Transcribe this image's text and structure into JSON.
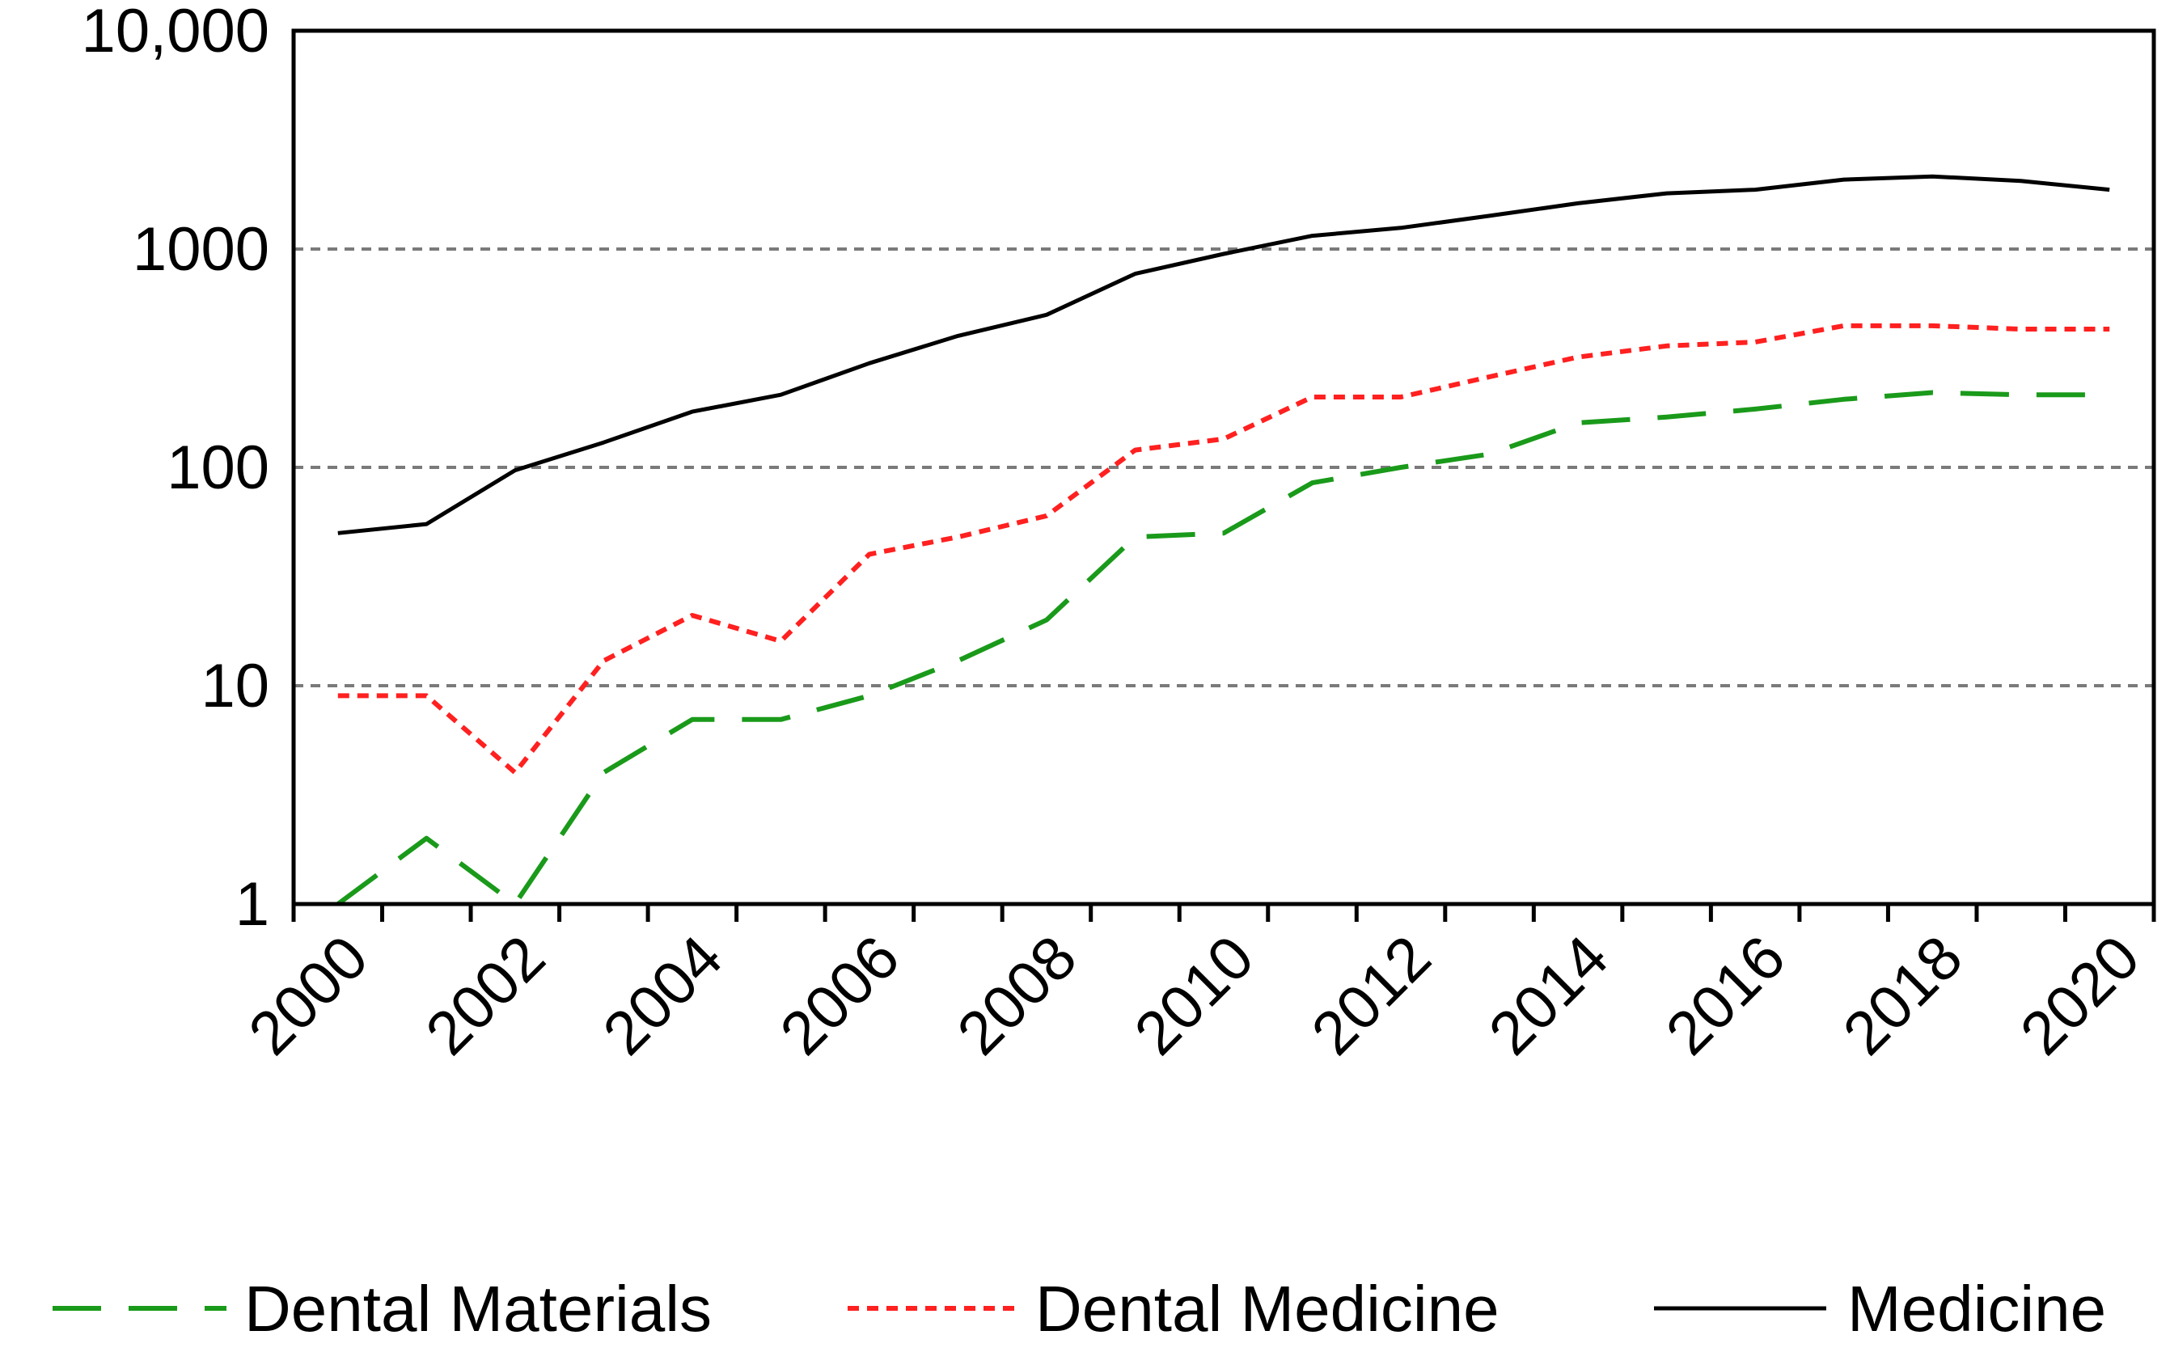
{
  "chart_data": {
    "type": "line",
    "title": "",
    "xlabel": "",
    "ylabel": "",
    "y_scale": "log",
    "ylim": [
      1,
      10000
    ],
    "y_ticks": [
      {
        "value": 1,
        "label": "1"
      },
      {
        "value": 10,
        "label": "10"
      },
      {
        "value": 100,
        "label": "100"
      },
      {
        "value": 1000,
        "label": "1000"
      },
      {
        "value": 10000,
        "label": "10,000"
      }
    ],
    "grid": "horizontal dashed at 10, 100, 1000",
    "x": [
      2000,
      2001,
      2002,
      2003,
      2004,
      2005,
      2006,
      2007,
      2008,
      2009,
      2010,
      2011,
      2012,
      2013,
      2014,
      2015,
      2016,
      2017,
      2018,
      2019,
      2020
    ],
    "x_tick_labels": [
      "2000",
      "2002",
      "2004",
      "2006",
      "2008",
      "2010",
      "2012",
      "2014",
      "2016",
      "2018",
      "2020"
    ],
    "legend_position": "bottom",
    "series": [
      {
        "name": "Dental Materials",
        "color": "#1a9a1a",
        "style": "long-dash",
        "values": [
          1,
          2,
          1,
          4,
          7,
          7,
          9,
          13,
          20,
          48,
          50,
          85,
          100,
          115,
          160,
          170,
          185,
          205,
          220,
          215,
          215
        ]
      },
      {
        "name": "Dental Medicine",
        "color": "#ff2020",
        "style": "short-dash",
        "values": [
          9,
          9,
          4,
          13,
          21,
          16,
          40,
          48,
          60,
          120,
          135,
          210,
          210,
          260,
          320,
          360,
          375,
          445,
          445,
          430,
          430
        ]
      },
      {
        "name": "Medicine",
        "color": "#000000",
        "style": "solid",
        "values": [
          50,
          55,
          97,
          130,
          180,
          215,
          300,
          400,
          500,
          770,
          950,
          1150,
          1250,
          1420,
          1620,
          1800,
          1870,
          2080,
          2150,
          2050,
          1870
        ]
      }
    ]
  }
}
